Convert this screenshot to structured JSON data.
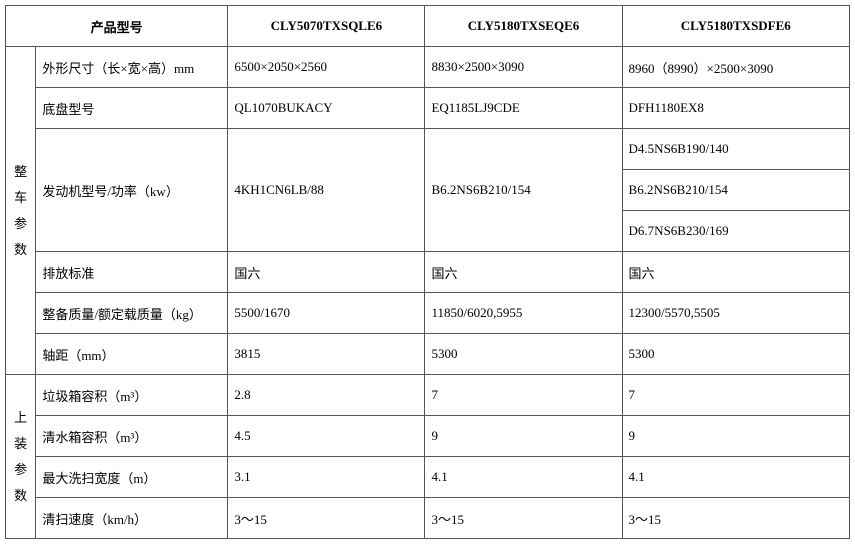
{
  "headers": {
    "paramModel": "产品型号",
    "modelA": "CLY5070TXSQLE6",
    "modelB": "CLY5180TXSEQE6",
    "modelC": "CLY5180TXSDFE6"
  },
  "groups": {
    "vehicle": "整车参数",
    "upper": "上装参数"
  },
  "rows": {
    "dims": {
      "label": "外形尺寸（长×宽×高）mm",
      "a": "6500×2050×2560",
      "b": "8830×2500×3090",
      "c": "8960（8990）×2500×3090"
    },
    "chassis": {
      "label": "底盘型号",
      "a": "QL1070BUKACY",
      "b": "EQ1185LJ9CDE",
      "c": "DFH1180EX8"
    },
    "engine": {
      "label": "发动机型号/功率（kw）",
      "a": "4KH1CN6LB/88",
      "b": "B6.2NS6B210/154",
      "c1": "D4.5NS6B190/140",
      "c2": "B6.2NS6B210/154",
      "c3": "D6.7NS6B230/169"
    },
    "emission": {
      "label": "排放标准",
      "a": "国六",
      "b": "国六",
      "c": "国六"
    },
    "mass": {
      "label": "整备质量/额定载质量（kg）",
      "a": "5500/1670",
      "b": "11850/6020,5955",
      "c": "12300/5570,5505"
    },
    "wheelbase": {
      "label": "轴距（mm）",
      "a": "3815",
      "b": "5300",
      "c": "5300"
    },
    "trash": {
      "label": "垃圾箱容积（m³）",
      "a": "2.8",
      "b": "7",
      "c": "7"
    },
    "water": {
      "label": "清水箱容积（m³）",
      "a": "4.5",
      "b": "9",
      "c": "9"
    },
    "sweepw": {
      "label": "最大洗扫宽度（m）",
      "a": "3.1",
      "b": "4.1",
      "c": "4.1"
    },
    "speed": {
      "label": "清扫速度（km/h）",
      "a": "3～15",
      "b": "3～15",
      "c": "3～15"
    }
  }
}
